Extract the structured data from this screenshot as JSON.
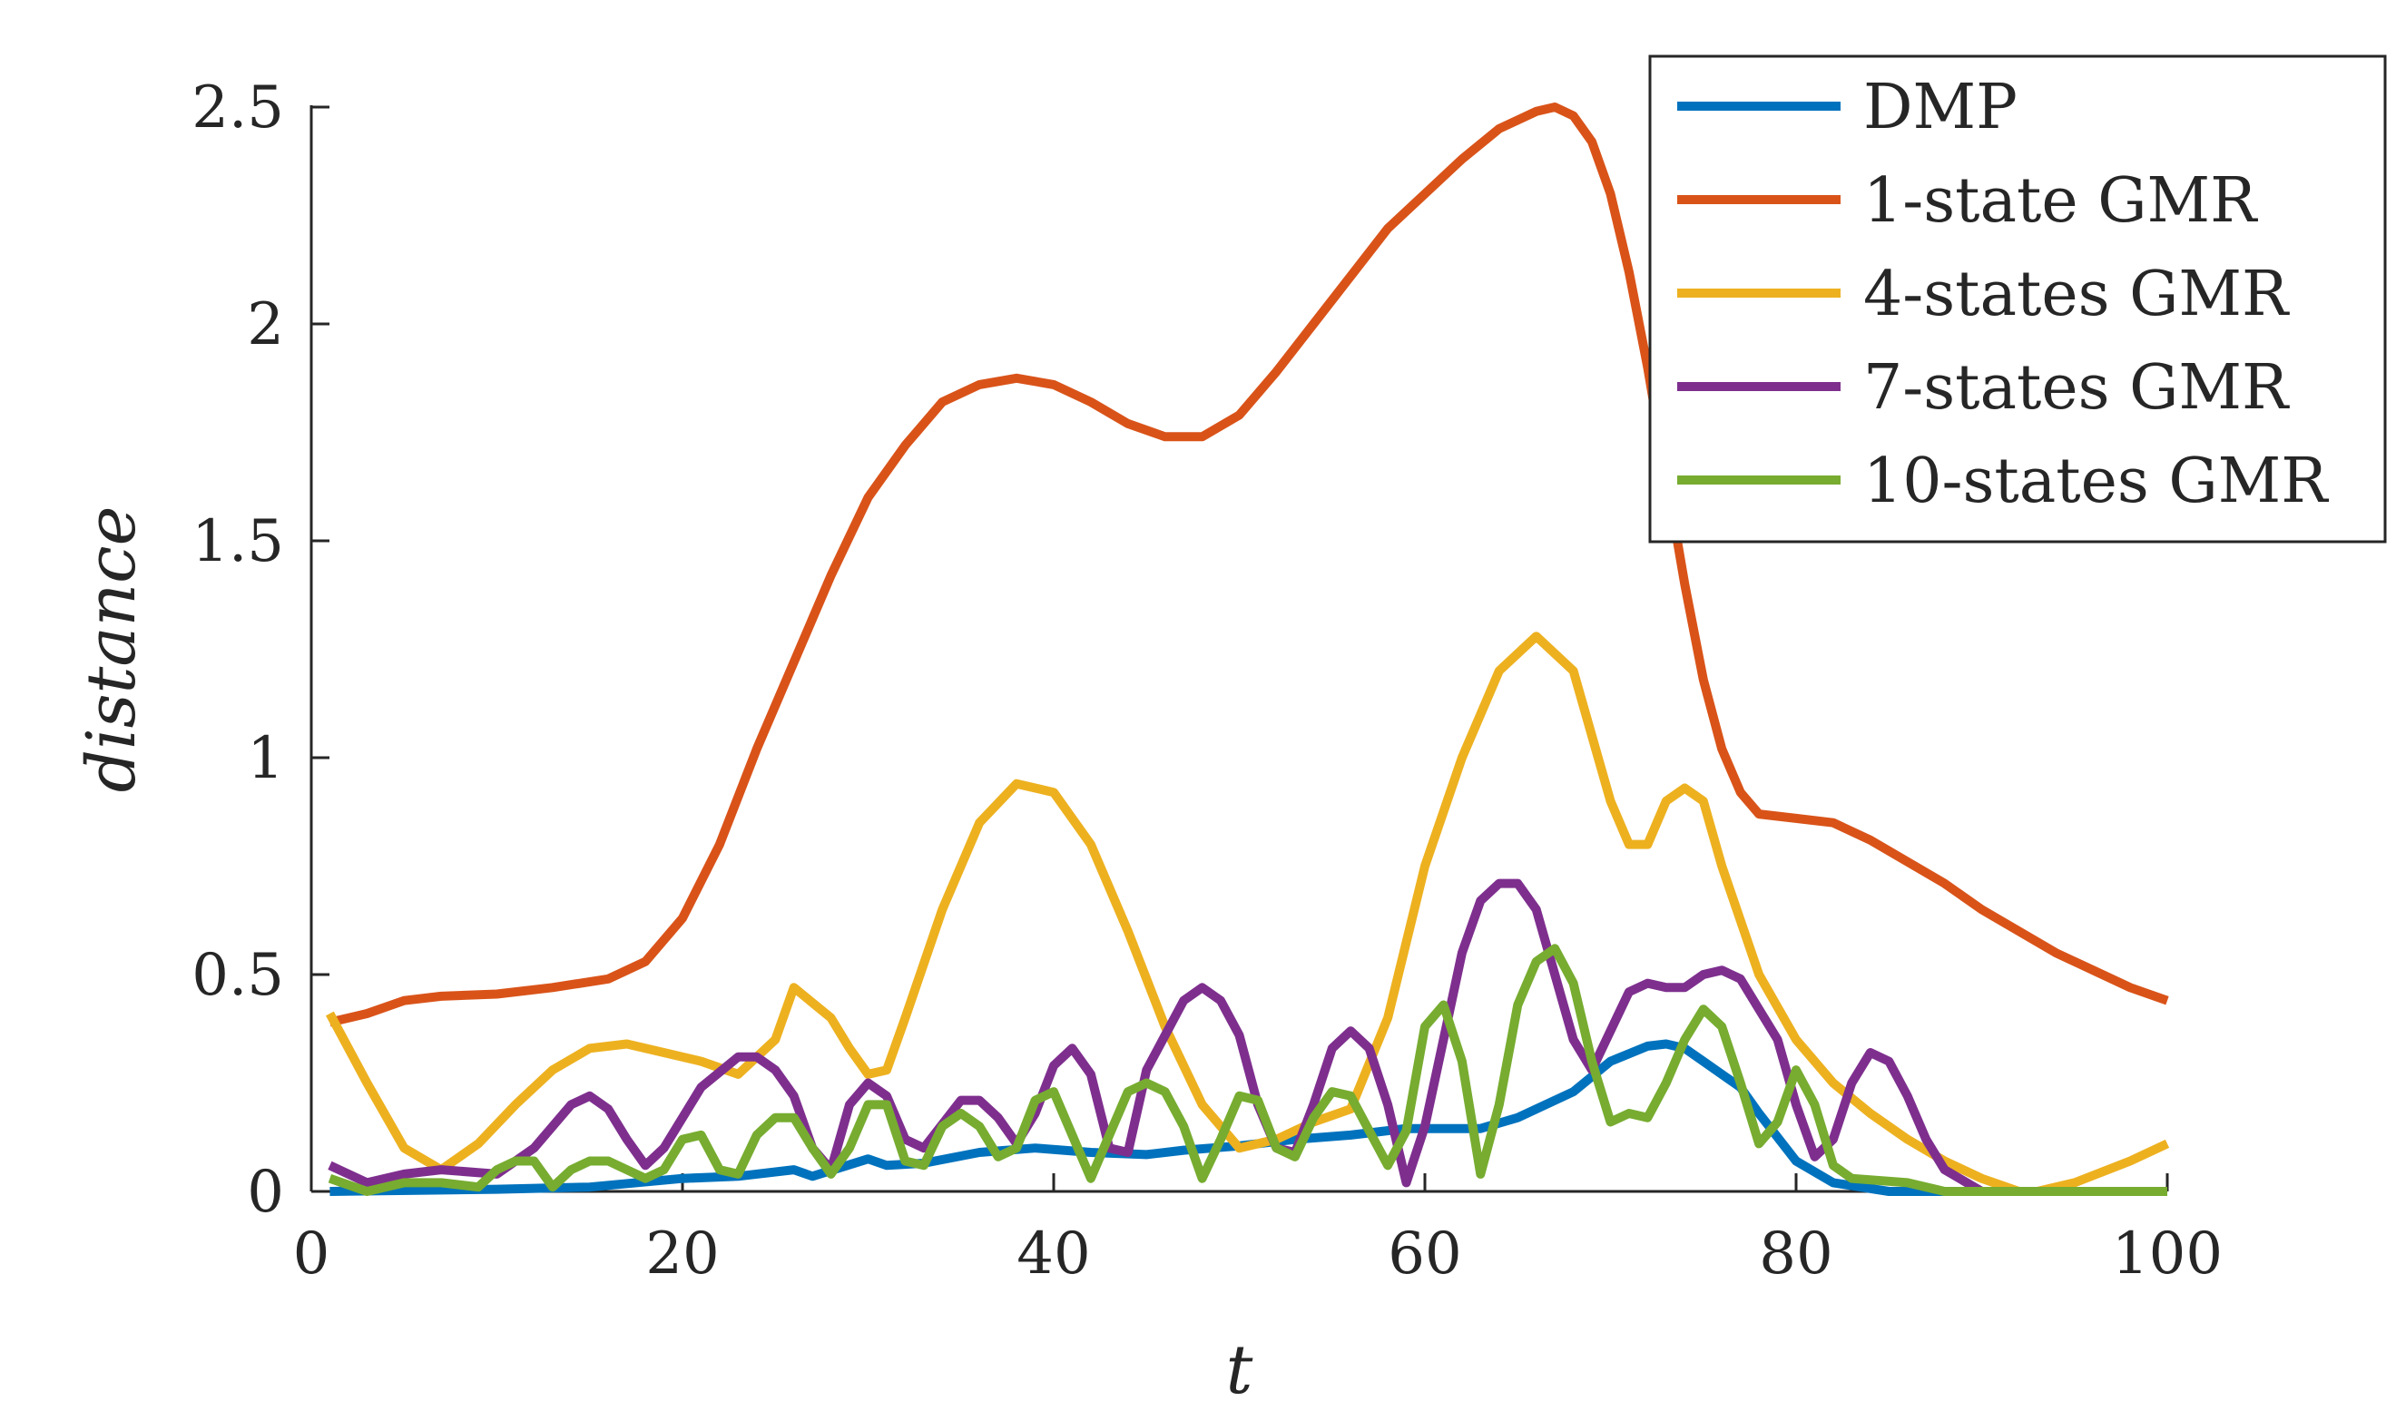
{
  "chart_data": {
    "type": "line",
    "title": "",
    "xlabel": "t",
    "ylabel": "distance",
    "xlim": [
      0,
      100
    ],
    "ylim": [
      0,
      2.5
    ],
    "xticks": [
      0,
      20,
      40,
      60,
      80,
      100
    ],
    "yticks": [
      0,
      0.5,
      1,
      1.5,
      2,
      2.5
    ],
    "xtick_labels": [
      "0",
      "20",
      "40",
      "60",
      "80",
      "100"
    ],
    "ytick_labels": [
      "0",
      "0.5",
      "1",
      "1.5",
      "2",
      "2.5"
    ],
    "grid": false,
    "legend_position": "top-right",
    "series": [
      {
        "name": "DMP",
        "color": "#0072BD",
        "points": [
          [
            1,
            0
          ],
          [
            10,
            0.005
          ],
          [
            15,
            0.01
          ],
          [
            20,
            0.03
          ],
          [
            23,
            0.035
          ],
          [
            26,
            0.05
          ],
          [
            27,
            0.035
          ],
          [
            30,
            0.075
          ],
          [
            31,
            0.06
          ],
          [
            33,
            0.065
          ],
          [
            36,
            0.09
          ],
          [
            39,
            0.1
          ],
          [
            42,
            0.09
          ],
          [
            45,
            0.085
          ],
          [
            47,
            0.095
          ],
          [
            50,
            0.105
          ],
          [
            53,
            0.12
          ],
          [
            56,
            0.13
          ],
          [
            59,
            0.145
          ],
          [
            63,
            0.145
          ],
          [
            65,
            0.17
          ],
          [
            68,
            0.23
          ],
          [
            70,
            0.3
          ],
          [
            72,
            0.335
          ],
          [
            73,
            0.34
          ],
          [
            74,
            0.33
          ],
          [
            75,
            0.3
          ],
          [
            77,
            0.24
          ],
          [
            78,
            0.18
          ],
          [
            80,
            0.07
          ],
          [
            82,
            0.02
          ],
          [
            85,
            0
          ],
          [
            100,
            0
          ]
        ]
      },
      {
        "name": "1-state GMR",
        "color": "#D95319",
        "points": [
          [
            1,
            0.39
          ],
          [
            3,
            0.41
          ],
          [
            5,
            0.44
          ],
          [
            7,
            0.45
          ],
          [
            10,
            0.455
          ],
          [
            13,
            0.47
          ],
          [
            16,
            0.49
          ],
          [
            18,
            0.53
          ],
          [
            20,
            0.63
          ],
          [
            22,
            0.8
          ],
          [
            24,
            1.02
          ],
          [
            26,
            1.22
          ],
          [
            28,
            1.42
          ],
          [
            30,
            1.6
          ],
          [
            32,
            1.72
          ],
          [
            34,
            1.82
          ],
          [
            36,
            1.86
          ],
          [
            38,
            1.875
          ],
          [
            40,
            1.86
          ],
          [
            42,
            1.82
          ],
          [
            44,
            1.77
          ],
          [
            46,
            1.74
          ],
          [
            48,
            1.74
          ],
          [
            50,
            1.79
          ],
          [
            52,
            1.89
          ],
          [
            54,
            2.0
          ],
          [
            56,
            2.11
          ],
          [
            58,
            2.22
          ],
          [
            60,
            2.3
          ],
          [
            62,
            2.38
          ],
          [
            64,
            2.45
          ],
          [
            66,
            2.49
          ],
          [
            67,
            2.5
          ],
          [
            68,
            2.48
          ],
          [
            69,
            2.42
          ],
          [
            70,
            2.3
          ],
          [
            71,
            2.12
          ],
          [
            72,
            1.9
          ],
          [
            73,
            1.65
          ],
          [
            74,
            1.4
          ],
          [
            75,
            1.18
          ],
          [
            76,
            1.02
          ],
          [
            77,
            0.92
          ],
          [
            78,
            0.87
          ],
          [
            80,
            0.86
          ],
          [
            82,
            0.85
          ],
          [
            84,
            0.81
          ],
          [
            86,
            0.76
          ],
          [
            88,
            0.71
          ],
          [
            90,
            0.65
          ],
          [
            92,
            0.6
          ],
          [
            94,
            0.55
          ],
          [
            96,
            0.51
          ],
          [
            98,
            0.47
          ],
          [
            100,
            0.44
          ]
        ]
      },
      {
        "name": "4-states GMR",
        "color": "#EDB120",
        "points": [
          [
            1,
            0.41
          ],
          [
            3,
            0.25
          ],
          [
            5,
            0.1
          ],
          [
            7,
            0.05
          ],
          [
            9,
            0.11
          ],
          [
            11,
            0.2
          ],
          [
            13,
            0.28
          ],
          [
            15,
            0.33
          ],
          [
            17,
            0.34
          ],
          [
            19,
            0.32
          ],
          [
            21,
            0.3
          ],
          [
            23,
            0.27
          ],
          [
            25,
            0.35
          ],
          [
            26,
            0.47
          ],
          [
            28,
            0.4
          ],
          [
            29,
            0.33
          ],
          [
            30,
            0.27
          ],
          [
            31,
            0.28
          ],
          [
            32,
            0.4
          ],
          [
            34,
            0.65
          ],
          [
            36,
            0.85
          ],
          [
            38,
            0.94
          ],
          [
            40,
            0.92
          ],
          [
            42,
            0.8
          ],
          [
            44,
            0.6
          ],
          [
            46,
            0.38
          ],
          [
            48,
            0.2
          ],
          [
            50,
            0.1
          ],
          [
            52,
            0.12
          ],
          [
            54,
            0.16
          ],
          [
            56,
            0.19
          ],
          [
            58,
            0.4
          ],
          [
            60,
            0.75
          ],
          [
            62,
            1.0
          ],
          [
            64,
            1.2
          ],
          [
            66,
            1.28
          ],
          [
            68,
            1.2
          ],
          [
            70,
            0.9
          ],
          [
            71,
            0.8
          ],
          [
            72,
            0.8
          ],
          [
            73,
            0.9
          ],
          [
            74,
            0.93
          ],
          [
            75,
            0.9
          ],
          [
            76,
            0.75
          ],
          [
            78,
            0.5
          ],
          [
            80,
            0.35
          ],
          [
            82,
            0.25
          ],
          [
            84,
            0.18
          ],
          [
            86,
            0.12
          ],
          [
            88,
            0.07
          ],
          [
            90,
            0.03
          ],
          [
            92,
            0
          ],
          [
            93,
            0
          ],
          [
            95,
            0.02
          ],
          [
            98,
            0.07
          ],
          [
            100,
            0.11
          ]
        ]
      },
      {
        "name": "7-states GMR",
        "color": "#7E2F8E",
        "points": [
          [
            1,
            0.06
          ],
          [
            3,
            0.02
          ],
          [
            5,
            0.04
          ],
          [
            7,
            0.05
          ],
          [
            10,
            0.04
          ],
          [
            12,
            0.1
          ],
          [
            14,
            0.2
          ],
          [
            15,
            0.22
          ],
          [
            16,
            0.19
          ],
          [
            17,
            0.12
          ],
          [
            18,
            0.06
          ],
          [
            19,
            0.1
          ],
          [
            21,
            0.24
          ],
          [
            23,
            0.31
          ],
          [
            24,
            0.31
          ],
          [
            25,
            0.28
          ],
          [
            26,
            0.22
          ],
          [
            27,
            0.1
          ],
          [
            28,
            0.05
          ],
          [
            29,
            0.2
          ],
          [
            30,
            0.25
          ],
          [
            31,
            0.22
          ],
          [
            32,
            0.12
          ],
          [
            33,
            0.1
          ],
          [
            35,
            0.21
          ],
          [
            36,
            0.21
          ],
          [
            37,
            0.17
          ],
          [
            38,
            0.11
          ],
          [
            39,
            0.18
          ],
          [
            40,
            0.29
          ],
          [
            41,
            0.33
          ],
          [
            42,
            0.27
          ],
          [
            43,
            0.1
          ],
          [
            44,
            0.09
          ],
          [
            45,
            0.28
          ],
          [
            47,
            0.44
          ],
          [
            48,
            0.47
          ],
          [
            49,
            0.44
          ],
          [
            50,
            0.36
          ],
          [
            51,
            0.2
          ],
          [
            52,
            0.1
          ],
          [
            53,
            0.09
          ],
          [
            54,
            0.2
          ],
          [
            55,
            0.33
          ],
          [
            56,
            0.37
          ],
          [
            57,
            0.33
          ],
          [
            58,
            0.2
          ],
          [
            59,
            0.02
          ],
          [
            60,
            0.15
          ],
          [
            61,
            0.35
          ],
          [
            62,
            0.55
          ],
          [
            63,
            0.67
          ],
          [
            64,
            0.71
          ],
          [
            65,
            0.71
          ],
          [
            66,
            0.65
          ],
          [
            67,
            0.5
          ],
          [
            68,
            0.35
          ],
          [
            69,
            0.28
          ],
          [
            71,
            0.46
          ],
          [
            72,
            0.48
          ],
          [
            73,
            0.47
          ],
          [
            74,
            0.47
          ],
          [
            75,
            0.5
          ],
          [
            76,
            0.51
          ],
          [
            77,
            0.49
          ],
          [
            78,
            0.42
          ],
          [
            79,
            0.35
          ],
          [
            80,
            0.2
          ],
          [
            81,
            0.08
          ],
          [
            82,
            0.12
          ],
          [
            83,
            0.25
          ],
          [
            84,
            0.32
          ],
          [
            85,
            0.3
          ],
          [
            86,
            0.22
          ],
          [
            87,
            0.12
          ],
          [
            88,
            0.05
          ],
          [
            90,
            0
          ],
          [
            100,
            0
          ]
        ]
      },
      {
        "name": "10-states GMR",
        "color": "#77AC30",
        "points": [
          [
            1,
            0.03
          ],
          [
            3,
            0
          ],
          [
            5,
            0.02
          ],
          [
            7,
            0.02
          ],
          [
            9,
            0.01
          ],
          [
            10,
            0.05
          ],
          [
            11,
            0.07
          ],
          [
            12,
            0.07
          ],
          [
            13,
            0.01
          ],
          [
            14,
            0.05
          ],
          [
            15,
            0.07
          ],
          [
            16,
            0.07
          ],
          [
            17,
            0.05
          ],
          [
            18,
            0.03
          ],
          [
            19,
            0.05
          ],
          [
            20,
            0.12
          ],
          [
            21,
            0.13
          ],
          [
            22,
            0.05
          ],
          [
            23,
            0.04
          ],
          [
            24,
            0.13
          ],
          [
            25,
            0.17
          ],
          [
            26,
            0.17
          ],
          [
            27,
            0.1
          ],
          [
            28,
            0.04
          ],
          [
            29,
            0.1
          ],
          [
            30,
            0.2
          ],
          [
            31,
            0.2
          ],
          [
            32,
            0.07
          ],
          [
            33,
            0.06
          ],
          [
            34,
            0.15
          ],
          [
            35,
            0.18
          ],
          [
            36,
            0.15
          ],
          [
            37,
            0.08
          ],
          [
            38,
            0.1
          ],
          [
            39,
            0.21
          ],
          [
            40,
            0.23
          ],
          [
            41,
            0.13
          ],
          [
            42,
            0.03
          ],
          [
            43,
            0.13
          ],
          [
            44,
            0.23
          ],
          [
            45,
            0.25
          ],
          [
            46,
            0.23
          ],
          [
            47,
            0.15
          ],
          [
            48,
            0.03
          ],
          [
            49,
            0.12
          ],
          [
            50,
            0.22
          ],
          [
            51,
            0.21
          ],
          [
            52,
            0.1
          ],
          [
            53,
            0.08
          ],
          [
            54,
            0.17
          ],
          [
            55,
            0.23
          ],
          [
            56,
            0.22
          ],
          [
            57,
            0.14
          ],
          [
            58,
            0.06
          ],
          [
            59,
            0.14
          ],
          [
            60,
            0.38
          ],
          [
            61,
            0.43
          ],
          [
            62,
            0.3
          ],
          [
            63,
            0.04
          ],
          [
            64,
            0.2
          ],
          [
            65,
            0.43
          ],
          [
            66,
            0.53
          ],
          [
            67,
            0.56
          ],
          [
            68,
            0.48
          ],
          [
            69,
            0.3
          ],
          [
            70,
            0.16
          ],
          [
            71,
            0.18
          ],
          [
            72,
            0.17
          ],
          [
            73,
            0.25
          ],
          [
            74,
            0.35
          ],
          [
            75,
            0.42
          ],
          [
            76,
            0.38
          ],
          [
            77,
            0.25
          ],
          [
            78,
            0.11
          ],
          [
            79,
            0.16
          ],
          [
            80,
            0.28
          ],
          [
            81,
            0.2
          ],
          [
            82,
            0.06
          ],
          [
            83,
            0.03
          ],
          [
            86,
            0.02
          ],
          [
            88,
            0
          ],
          [
            100,
            0
          ]
        ]
      }
    ]
  }
}
